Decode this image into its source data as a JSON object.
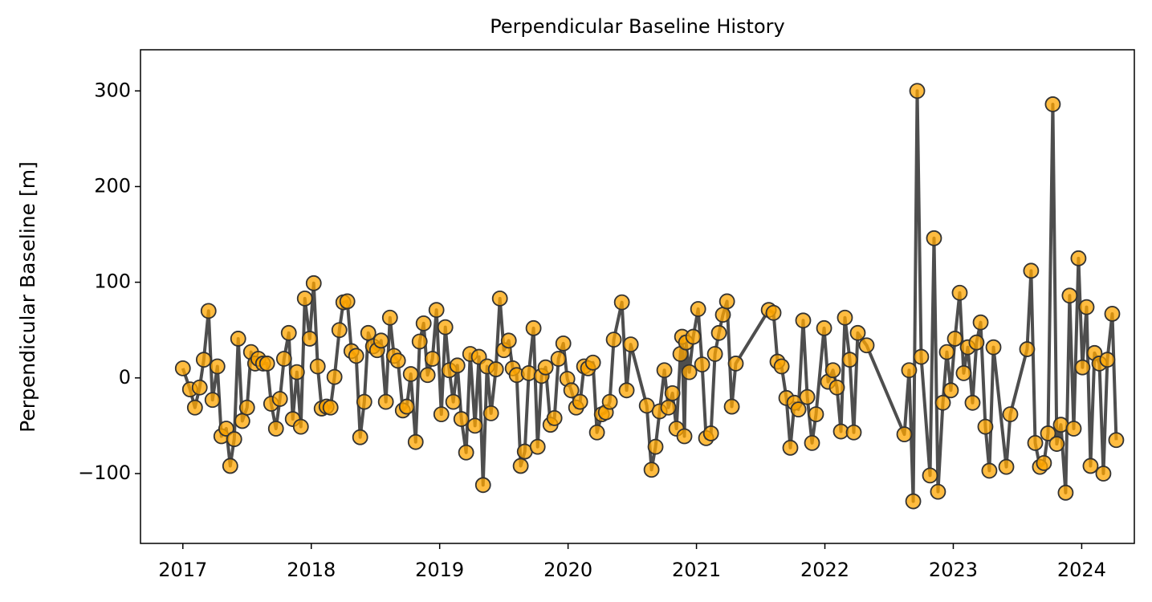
{
  "chart_data": {
    "type": "line",
    "title": "Perpendicular Baseline History",
    "ylabel": "Perpendicular Baseline [m]",
    "line_color": "#444444",
    "color": "#ffa500",
    "edge_color": "#333333",
    "xlim": [
      2016.67,
      2024.41
    ],
    "ylim": [
      -173,
      343
    ],
    "xticks": [
      2017,
      2018,
      2019,
      2020,
      2021,
      2022,
      2023,
      2024
    ],
    "yticks": [
      {
        "value": -100,
        "label": "−100"
      },
      0,
      100,
      200,
      300
    ],
    "x": [
      2017.0,
      2017.056,
      2017.094,
      2017.131,
      2017.163,
      2017.2,
      2017.231,
      2017.269,
      2017.3,
      2017.338,
      2017.369,
      2017.4,
      2017.431,
      2017.463,
      2017.5,
      2017.531,
      2017.563,
      2017.588,
      2017.625,
      2017.656,
      2017.688,
      2017.725,
      2017.756,
      2017.788,
      2017.825,
      2017.856,
      2017.888,
      2017.919,
      2017.95,
      2017.988,
      2018.019,
      2018.05,
      2018.081,
      2018.119,
      2018.15,
      2018.181,
      2018.219,
      2018.25,
      2018.281,
      2018.313,
      2018.35,
      2018.381,
      2018.413,
      2018.444,
      2018.481,
      2018.513,
      2018.544,
      2018.581,
      2018.613,
      2018.644,
      2018.675,
      2018.713,
      2018.744,
      2018.775,
      2018.813,
      2018.844,
      2018.875,
      2018.906,
      2018.944,
      2018.975,
      2019.013,
      2019.044,
      2019.075,
      2019.106,
      2019.138,
      2019.169,
      2019.206,
      2019.238,
      2019.275,
      2019.306,
      2019.338,
      2019.369,
      2019.4,
      2019.438,
      2019.469,
      2019.5,
      2019.538,
      2019.569,
      2019.6,
      2019.631,
      2019.663,
      2019.694,
      2019.731,
      2019.763,
      2019.794,
      2019.825,
      2019.863,
      2019.894,
      2019.925,
      2019.963,
      2019.994,
      2020.025,
      2020.063,
      2020.094,
      2020.125,
      2020.156,
      2020.194,
      2020.225,
      2020.263,
      2020.294,
      2020.325,
      2020.356,
      2020.419,
      2020.456,
      2020.488,
      2020.613,
      2020.65,
      2020.681,
      2020.713,
      2020.75,
      2020.781,
      2020.813,
      2020.844,
      2020.875,
      2020.888,
      2020.906,
      2020.919,
      2020.944,
      2020.975,
      2021.013,
      2021.044,
      2021.075,
      2021.113,
      2021.144,
      2021.175,
      2021.206,
      2021.238,
      2021.275,
      2021.306,
      2021.563,
      2021.6,
      2021.631,
      2021.663,
      2021.7,
      2021.731,
      2021.763,
      2021.794,
      2021.831,
      2021.863,
      2021.9,
      2021.931,
      2021.994,
      2022.025,
      2022.063,
      2022.094,
      2022.125,
      2022.156,
      2022.194,
      2022.225,
      2022.256,
      2022.325,
      2022.619,
      2022.656,
      2022.688,
      2022.719,
      2022.75,
      2022.819,
      2022.85,
      2022.881,
      2022.919,
      2022.95,
      2022.981,
      2023.013,
      2023.05,
      2023.081,
      2023.113,
      2023.15,
      2023.181,
      2023.213,
      2023.25,
      2023.281,
      2023.313,
      2023.413,
      2023.444,
      2023.575,
      2023.606,
      2023.638,
      2023.675,
      2023.706,
      2023.738,
      2023.775,
      2023.806,
      2023.838,
      2023.875,
      2023.906,
      2023.938,
      2023.975,
      2024.006,
      2024.038,
      2024.069,
      2024.1,
      2024.138,
      2024.169,
      2024.2,
      2024.238,
      2024.269
    ],
    "values": [
      10,
      -12,
      -31,
      -10,
      19,
      70,
      -23,
      12,
      -61,
      -53,
      -92,
      -64,
      41,
      -45,
      -31,
      27,
      15,
      20,
      15,
      15,
      -27,
      -53,
      -22,
      20,
      47,
      -43,
      6,
      -51,
      83,
      41,
      99,
      12,
      -32,
      -30,
      -31,
      1,
      50,
      79,
      80,
      28,
      23,
      -62,
      -25,
      47,
      33,
      29,
      39,
      -25,
      63,
      23,
      18,
      -34,
      -30,
      4,
      -67,
      38,
      57,
      3,
      20,
      71,
      -38,
      53,
      8,
      -25,
      13,
      -43,
      -78,
      25,
      -50,
      22,
      -112,
      12,
      -37,
      9,
      83,
      29,
      39,
      10,
      3,
      -92,
      -77,
      5,
      52,
      -72,
      2,
      11,
      -49,
      -42,
      20,
      36,
      -1,
      -13,
      -31,
      -25,
      12,
      10,
      16,
      -57,
      -38,
      -36,
      -25,
      40,
      79,
      -13,
      35,
      -29,
      -96,
      -72,
      -35,
      8,
      -31,
      -16,
      -53,
      25,
      43,
      -61,
      37,
      6,
      43,
      72,
      14,
      -63,
      -58,
      25,
      47,
      66,
      80,
      -30,
      15,
      71,
      68,
      17,
      12,
      -21,
      -73,
      -26,
      -33,
      60,
      -20,
      -68,
      -38,
      52,
      -4,
      8,
      -10,
      -56,
      63,
      19,
      -57,
      47,
      34,
      -59,
      8,
      -129,
      300,
      22,
      -102,
      146,
      -119,
      -26,
      27,
      -13,
      41,
      89,
      5,
      32,
      -26,
      37,
      58,
      -51,
      -97,
      32,
      -93,
      -38,
      30,
      112,
      -68,
      -93,
      -89,
      -58,
      286,
      -69,
      -49,
      -120,
      86,
      -53,
      125,
      11,
      74,
      -92,
      26,
      15,
      -100,
      19,
      67,
      -65
    ]
  }
}
